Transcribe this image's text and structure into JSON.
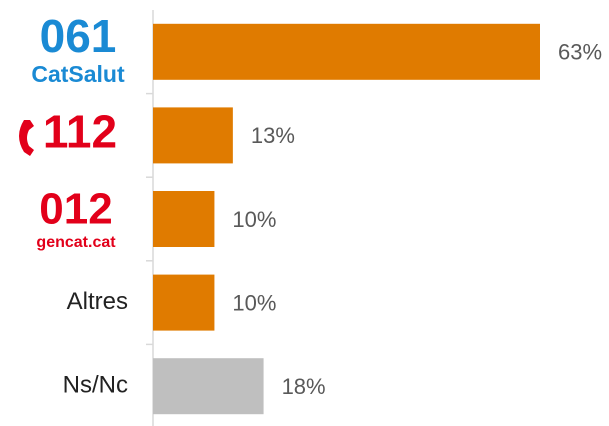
{
  "chart_data": {
    "type": "bar",
    "orientation": "horizontal",
    "categories": [
      [
        "061",
        "CatSalut"
      ],
      [
        "112"
      ],
      [
        "012",
        "gencat.cat"
      ],
      [
        "Altres"
      ],
      [
        "Ns/Nc"
      ]
    ],
    "values": [
      63,
      13,
      10,
      10,
      18
    ],
    "value_labels": [
      "63%",
      "13%",
      "10%",
      "10%",
      "18%"
    ],
    "colors": [
      "#e07b00",
      "#e07b00",
      "#e07b00",
      "#e07b00",
      "#bfbfbf"
    ]
  }
}
